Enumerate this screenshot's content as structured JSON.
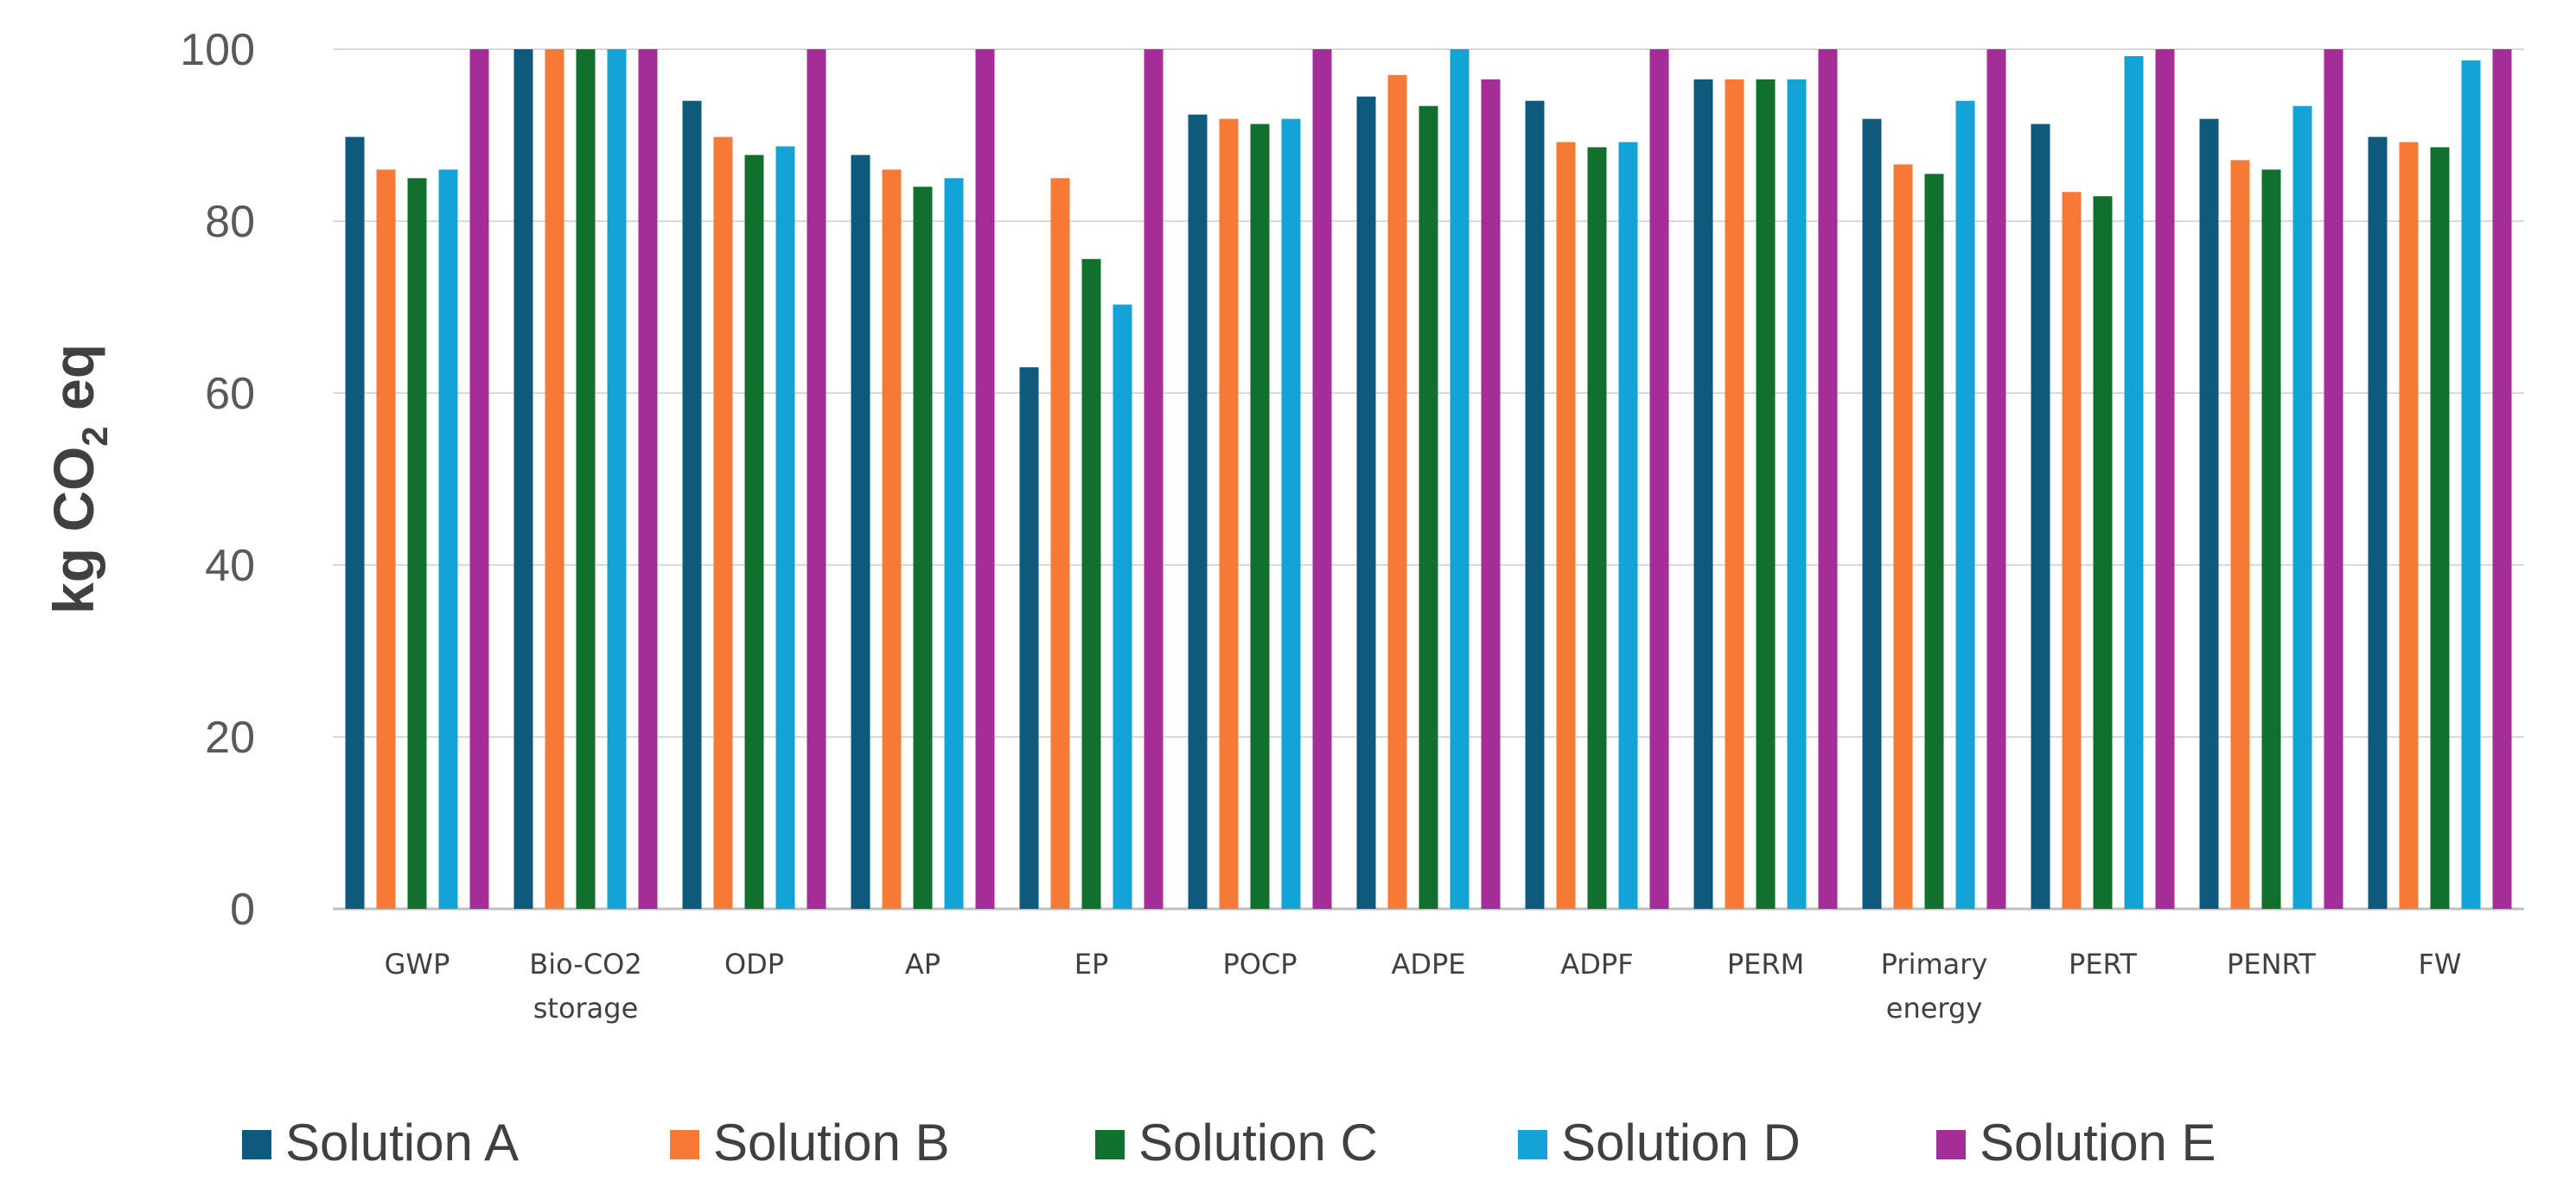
{
  "colors": {
    "Solution A": "#0e5a7c",
    "Solution B": "#f47a35",
    "Solution C": "#12702e",
    "Solution D": "#14a3d6",
    "Solution E": "#a42d98"
  },
  "y_axis_label": {
    "main": "kg CO",
    "sub": "2",
    "tail": " eq"
  },
  "chart_data": {
    "type": "bar",
    "categories": [
      [
        "GWP"
      ],
      [
        "Bio-CO2",
        "storage"
      ],
      [
        "ODP"
      ],
      [
        "AP"
      ],
      [
        "EP"
      ],
      [
        "POCP"
      ],
      [
        "ADPE"
      ],
      [
        "ADPF"
      ],
      [
        "PERM"
      ],
      [
        "Primary",
        "energy"
      ],
      [
        "PERT"
      ],
      [
        "PENRT"
      ],
      [
        "FW"
      ]
    ],
    "series": [
      {
        "name": "Solution A",
        "values": [
          89.8,
          100,
          94,
          87.7,
          63,
          92.4,
          94.5,
          94,
          96.5,
          91.9,
          91.3,
          91.9,
          89.8
        ]
      },
      {
        "name": "Solution B",
        "values": [
          86,
          100,
          89.8,
          86,
          85,
          91.9,
          97,
          89.2,
          96.5,
          86.6,
          83.4,
          87.1,
          89.2
        ]
      },
      {
        "name": "Solution C",
        "values": [
          85,
          100,
          87.7,
          84,
          75.6,
          91.3,
          93.4,
          88.6,
          96.5,
          85.5,
          82.9,
          86,
          88.6
        ]
      },
      {
        "name": "Solution D",
        "values": [
          86,
          100,
          88.7,
          85,
          70.3,
          91.9,
          100,
          89.2,
          96.5,
          94,
          99.2,
          93.4,
          98.7
        ]
      },
      {
        "name": "Solution E",
        "values": [
          100,
          100,
          100,
          100,
          100,
          100,
          96.5,
          100,
          100,
          100,
          100,
          100,
          100
        ]
      }
    ],
    "ylim": [
      0,
      100
    ],
    "yticks": [
      0,
      20,
      40,
      60,
      80,
      100
    ],
    "grid": true,
    "legend_position": "bottom"
  }
}
